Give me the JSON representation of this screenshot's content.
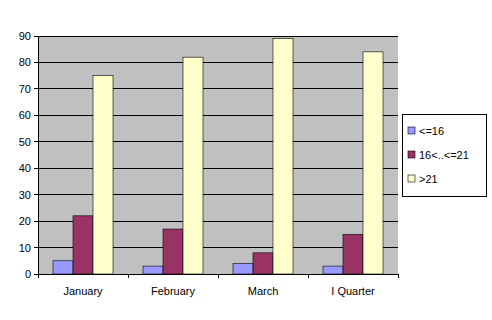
{
  "chart_data": {
    "type": "bar",
    "categories": [
      "January",
      "February",
      "March",
      "I Quarter"
    ],
    "series": [
      {
        "name": "<=16",
        "color": "#9999ff",
        "values": [
          5,
          3,
          4,
          3
        ]
      },
      {
        "name": "16<..<=21",
        "color": "#993366",
        "values": [
          22,
          17,
          8,
          15
        ]
      },
      {
        "name": ">21",
        "color": "#ffffcc",
        "values": [
          75,
          82,
          89,
          84
        ]
      }
    ],
    "ylim": [
      0,
      90
    ],
    "yticks": [
      0,
      10,
      20,
      30,
      40,
      50,
      60,
      70,
      80,
      90
    ],
    "grid": true,
    "legend": "right"
  }
}
